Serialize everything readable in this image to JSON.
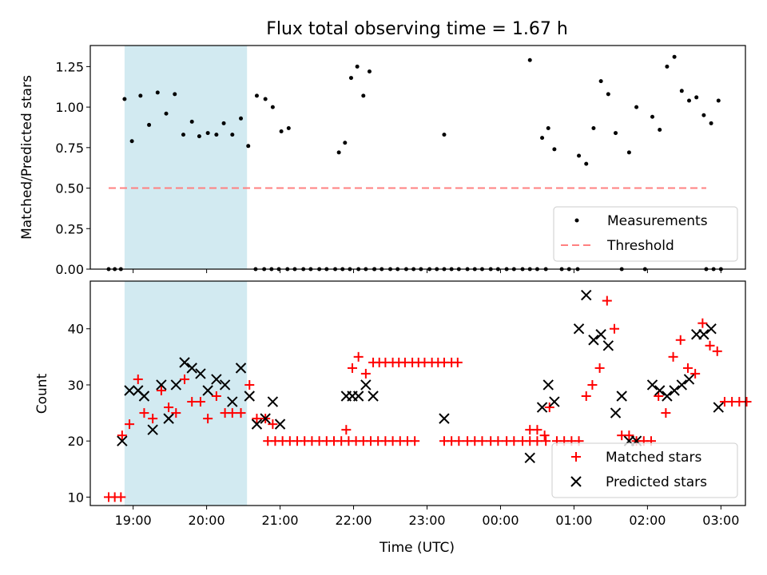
{
  "title": "Flux total observing time = 1.67 h",
  "chart_data": [
    {
      "type": "scatter",
      "ylabel": "Matched/Predicted stars",
      "xlim": [
        "18:25",
        "03:20"
      ],
      "ylim": [
        0,
        1.38
      ],
      "yticks": [
        "0.00",
        "0.25",
        "0.50",
        "0.75",
        "1.00",
        "1.25"
      ],
      "shaded_range": [
        "18:53",
        "20:33"
      ],
      "threshold": {
        "name": "Threshold",
        "value": 0.5,
        "x_range": [
          "18:40",
          "02:48"
        ],
        "color": "#ff8080"
      },
      "legend_position": "lower right",
      "series": [
        {
          "name": "Measurements",
          "color": "#000000",
          "points": [
            [
              "18:40",
              0
            ],
            [
              "18:45",
              0
            ],
            [
              "18:50",
              0
            ],
            [
              "18:53",
              1.05
            ],
            [
              "18:59",
              0.79
            ],
            [
              "19:06",
              1.07
            ],
            [
              "19:13",
              0.89
            ],
            [
              "19:20",
              1.09
            ],
            [
              "19:27",
              0.96
            ],
            [
              "19:34",
              1.08
            ],
            [
              "19:41",
              0.83
            ],
            [
              "19:48",
              0.91
            ],
            [
              "19:54",
              0.82
            ],
            [
              "20:01",
              0.84
            ],
            [
              "20:08",
              0.83
            ],
            [
              "20:14",
              0.9
            ],
            [
              "20:21",
              0.83
            ],
            [
              "20:28",
              0.93
            ],
            [
              "20:34",
              0.76
            ],
            [
              "20:41",
              1.07
            ],
            [
              "20:48",
              1.05
            ],
            [
              "20:54",
              1.0
            ],
            [
              "21:01",
              0.85
            ],
            [
              "21:07",
              0.87
            ],
            [
              "20:40",
              0
            ],
            [
              "20:47",
              0
            ],
            [
              "20:53",
              0
            ],
            [
              "20:59",
              0
            ],
            [
              "21:06",
              0
            ],
            [
              "21:12",
              0
            ],
            [
              "21:19",
              0
            ],
            [
              "21:25",
              0
            ],
            [
              "21:32",
              0
            ],
            [
              "21:38",
              0
            ],
            [
              "21:45",
              0
            ],
            [
              "21:51",
              0
            ],
            [
              "21:57",
              0
            ],
            [
              "22:04",
              0
            ],
            [
              "22:10",
              0
            ],
            [
              "22:17",
              0
            ],
            [
              "21:48",
              0.72
            ],
            [
              "21:53",
              0.78
            ],
            [
              "21:58",
              1.18
            ],
            [
              "22:03",
              1.25
            ],
            [
              "22:08",
              1.07
            ],
            [
              "22:13",
              1.22
            ],
            [
              "22:17",
              0
            ],
            [
              "22:23",
              0
            ],
            [
              "22:30",
              0
            ],
            [
              "22:36",
              0
            ],
            [
              "22:43",
              0
            ],
            [
              "22:49",
              0
            ],
            [
              "22:55",
              0
            ],
            [
              "23:02",
              0
            ],
            [
              "23:08",
              0
            ],
            [
              "23:14",
              0
            ],
            [
              "23:14",
              0.83
            ],
            [
              "23:20",
              0
            ],
            [
              "23:26",
              0
            ],
            [
              "23:33",
              0
            ],
            [
              "23:39",
              0
            ],
            [
              "23:45",
              0
            ],
            [
              "23:52",
              0
            ],
            [
              "23:58",
              0
            ],
            [
              "00:05",
              0
            ],
            [
              "00:11",
              0
            ],
            [
              "00:18",
              0
            ],
            [
              "00:24",
              0
            ],
            [
              "00:30",
              0
            ],
            [
              "00:37",
              0
            ],
            [
              "00:24",
              1.29
            ],
            [
              "00:34",
              0.81
            ],
            [
              "00:39",
              0.87
            ],
            [
              "00:44",
              0.74
            ],
            [
              "00:50",
              0
            ],
            [
              "00:56",
              0
            ],
            [
              "01:03",
              0
            ],
            [
              "01:04",
              0.7
            ],
            [
              "01:10",
              0.65
            ],
            [
              "01:16",
              0.87
            ],
            [
              "01:22",
              1.16
            ],
            [
              "01:28",
              1.08
            ],
            [
              "01:34",
              0.84
            ],
            [
              "01:39",
              0
            ],
            [
              "01:45",
              0.72
            ],
            [
              "01:51",
              1.0
            ],
            [
              "01:58",
              0
            ],
            [
              "02:04",
              0.94
            ],
            [
              "02:10",
              0.86
            ],
            [
              "02:16",
              1.25
            ],
            [
              "02:22",
              1.31
            ],
            [
              "02:28",
              1.1
            ],
            [
              "02:34",
              1.04
            ],
            [
              "02:40",
              1.06
            ],
            [
              "02:46",
              0.95
            ],
            [
              "02:52",
              0.9
            ],
            [
              "02:58",
              1.04
            ],
            [
              "02:48",
              0
            ],
            [
              "02:54",
              0
            ],
            [
              "03:00",
              0
            ]
          ]
        }
      ]
    },
    {
      "type": "scatter",
      "xlabel": "Time (UTC)",
      "ylabel": "Count",
      "xlim": [
        "18:25",
        "03:20"
      ],
      "ylim": [
        8.5,
        48.5
      ],
      "yticks": [
        "10",
        "20",
        "30",
        "40"
      ],
      "xticks": [
        "19:00",
        "20:00",
        "21:00",
        "22:00",
        "23:00",
        "00:00",
        "01:00",
        "02:00",
        "03:00"
      ],
      "shaded_range": [
        "18:53",
        "20:33"
      ],
      "legend_position": "lower right",
      "series": [
        {
          "name": "Matched stars",
          "marker": "+",
          "color": "#ff0000",
          "points": [
            [
              "18:40",
              10
            ],
            [
              "18:45",
              10
            ],
            [
              "18:50",
              10
            ],
            [
              "18:51",
              21
            ],
            [
              "18:57",
              23
            ],
            [
              "19:04",
              31
            ],
            [
              "19:09",
              25
            ],
            [
              "19:16",
              24
            ],
            [
              "19:23",
              29
            ],
            [
              "19:29",
              26
            ],
            [
              "19:35",
              25
            ],
            [
              "19:42",
              31
            ],
            [
              "19:48",
              27
            ],
            [
              "19:55",
              27
            ],
            [
              "20:01",
              24
            ],
            [
              "20:08",
              28
            ],
            [
              "20:15",
              25
            ],
            [
              "20:21",
              25
            ],
            [
              "20:28",
              25
            ],
            [
              "20:35",
              30
            ],
            [
              "20:41",
              24
            ],
            [
              "20:48",
              24
            ],
            [
              "20:54",
              23
            ],
            [
              "20:50",
              20
            ],
            [
              "20:56",
              20
            ],
            [
              "21:02",
              20
            ],
            [
              "21:08",
              20
            ],
            [
              "21:14",
              20
            ],
            [
              "21:20",
              20
            ],
            [
              "21:26",
              20
            ],
            [
              "21:32",
              20
            ],
            [
              "21:38",
              20
            ],
            [
              "21:44",
              20
            ],
            [
              "21:50",
              20
            ],
            [
              "21:56",
              20
            ],
            [
              "22:02",
              20
            ],
            [
              "22:08",
              20
            ],
            [
              "22:14",
              20
            ],
            [
              "22:20",
              20
            ],
            [
              "22:26",
              20
            ],
            [
              "22:32",
              20
            ],
            [
              "22:38",
              20
            ],
            [
              "22:44",
              20
            ],
            [
              "22:50",
              20
            ],
            [
              "21:54",
              22
            ],
            [
              "21:59",
              33
            ],
            [
              "22:04",
              35
            ],
            [
              "22:10",
              32
            ],
            [
              "22:16",
              34
            ],
            [
              "22:21",
              34
            ],
            [
              "22:26",
              34
            ],
            [
              "22:32",
              34
            ],
            [
              "22:37",
              34
            ],
            [
              "22:42",
              34
            ],
            [
              "22:48",
              34
            ],
            [
              "22:53",
              34
            ],
            [
              "22:58",
              34
            ],
            [
              "23:04",
              34
            ],
            [
              "23:09",
              34
            ],
            [
              "23:14",
              34
            ],
            [
              "23:20",
              34
            ],
            [
              "23:25",
              34
            ],
            [
              "23:14",
              20
            ],
            [
              "23:20",
              20
            ],
            [
              "23:26",
              20
            ],
            [
              "23:33",
              20
            ],
            [
              "23:39",
              20
            ],
            [
              "23:45",
              20
            ],
            [
              "23:52",
              20
            ],
            [
              "23:58",
              20
            ],
            [
              "00:05",
              20
            ],
            [
              "00:11",
              20
            ],
            [
              "00:18",
              20
            ],
            [
              "00:24",
              20
            ],
            [
              "00:30",
              20
            ],
            [
              "00:37",
              20
            ],
            [
              "00:24",
              22
            ],
            [
              "00:30",
              22
            ],
            [
              "00:36",
              21
            ],
            [
              "00:40",
              26
            ],
            [
              "00:46",
              20
            ],
            [
              "00:52",
              20
            ],
            [
              "00:58",
              20
            ],
            [
              "01:04",
              20
            ],
            [
              "01:10",
              28
            ],
            [
              "01:15",
              30
            ],
            [
              "01:21",
              33
            ],
            [
              "01:27",
              45
            ],
            [
              "01:33",
              40
            ],
            [
              "01:39",
              21
            ],
            [
              "01:45",
              21
            ],
            [
              "01:51",
              20
            ],
            [
              "01:57",
              20
            ],
            [
              "02:03",
              20
            ],
            [
              "02:09",
              28
            ],
            [
              "02:15",
              25
            ],
            [
              "02:21",
              35
            ],
            [
              "02:27",
              38
            ],
            [
              "02:33",
              33
            ],
            [
              "02:39",
              32
            ],
            [
              "02:45",
              41
            ],
            [
              "02:51",
              37
            ],
            [
              "02:57",
              36
            ],
            [
              "03:03",
              27
            ],
            [
              "03:09",
              27
            ],
            [
              "03:15",
              27
            ],
            [
              "03:21",
              27
            ]
          ]
        },
        {
          "name": "Predicted stars",
          "marker": "x",
          "color": "#000000",
          "points": [
            [
              "18:51",
              20
            ],
            [
              "18:57",
              29
            ],
            [
              "19:04",
              29
            ],
            [
              "19:09",
              28
            ],
            [
              "19:16",
              22
            ],
            [
              "19:23",
              30
            ],
            [
              "19:29",
              24
            ],
            [
              "19:35",
              30
            ],
            [
              "19:42",
              34
            ],
            [
              "19:48",
              33
            ],
            [
              "19:55",
              32
            ],
            [
              "20:01",
              29
            ],
            [
              "20:08",
              31
            ],
            [
              "20:15",
              30
            ],
            [
              "20:21",
              27
            ],
            [
              "20:28",
              33
            ],
            [
              "20:35",
              28
            ],
            [
              "20:41",
              23
            ],
            [
              "20:48",
              24
            ],
            [
              "20:54",
              27
            ],
            [
              "21:00",
              23
            ],
            [
              "21:54",
              28
            ],
            [
              "21:59",
              28
            ],
            [
              "22:04",
              28
            ],
            [
              "22:10",
              30
            ],
            [
              "22:16",
              28
            ],
            [
              "23:14",
              24
            ],
            [
              "00:24",
              17
            ],
            [
              "00:34",
              26
            ],
            [
              "00:39",
              30
            ],
            [
              "00:44",
              27
            ],
            [
              "01:04",
              40
            ],
            [
              "01:10",
              46
            ],
            [
              "01:16",
              38
            ],
            [
              "01:22",
              39
            ],
            [
              "01:28",
              37
            ],
            [
              "01:34",
              25
            ],
            [
              "01:39",
              28
            ],
            [
              "01:45",
              20
            ],
            [
              "01:51",
              20
            ],
            [
              "02:04",
              30
            ],
            [
              "02:10",
              29
            ],
            [
              "02:16",
              28
            ],
            [
              "02:22",
              29
            ],
            [
              "02:28",
              30
            ],
            [
              "02:34",
              31
            ],
            [
              "02:40",
              39
            ],
            [
              "02:46",
              39
            ],
            [
              "02:52",
              40
            ],
            [
              "02:58",
              26
            ]
          ]
        }
      ]
    }
  ]
}
